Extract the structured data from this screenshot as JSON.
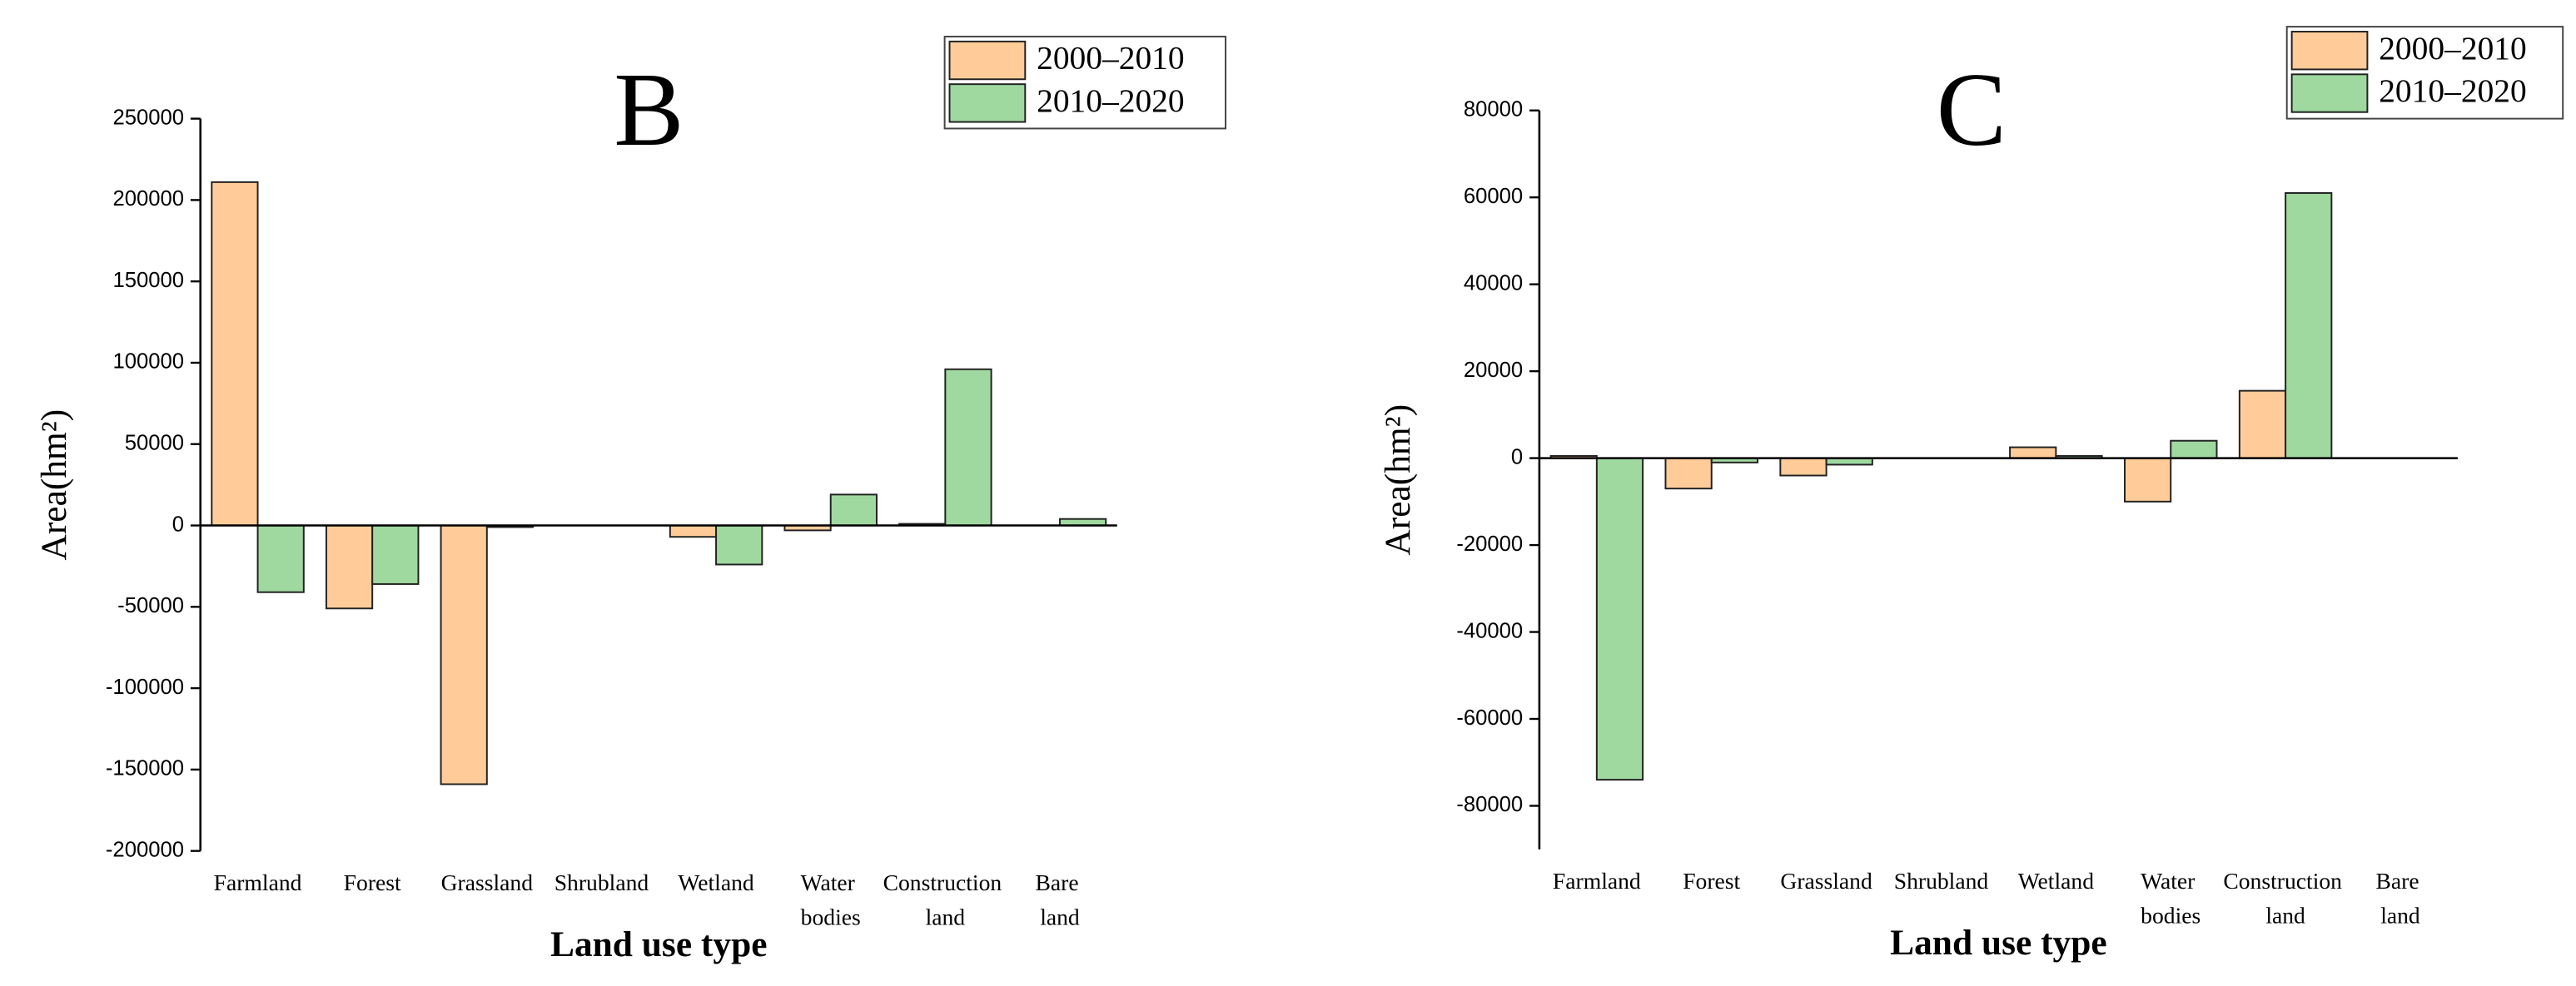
{
  "chart_data": [
    {
      "type": "bar",
      "title": "B",
      "x_label": "Land use type",
      "y_label": "Area(hm²)",
      "categories": [
        "Farmland",
        "Forest",
        "Grassland",
        "Shrubland",
        "Wetland",
        "Water bodies",
        "Construction land",
        "Bare land"
      ],
      "series": [
        {
          "name": "2000–2010",
          "color": "#ffcc99",
          "values": [
            211000,
            -51000,
            -159000,
            0,
            -7000,
            -3000,
            1000,
            0
          ]
        },
        {
          "name": "2010–2020",
          "color": "#9fd99f",
          "values": [
            -41000,
            -36000,
            -1000,
            0,
            -24000,
            19000,
            96000,
            4000
          ]
        }
      ],
      "ylim": [
        -200000,
        250000
      ],
      "yticks": [
        -200000,
        -150000,
        -100000,
        -50000,
        0,
        50000,
        100000,
        150000,
        200000,
        250000
      ],
      "legend": "upper right"
    },
    {
      "type": "bar",
      "title": "C",
      "x_label": "Land use type",
      "y_label": "Area(hm²)",
      "categories": [
        "Farmland",
        "Forest",
        "Grassland",
        "Shrubland",
        "Wetland",
        "Water bodies",
        "Construction land",
        "Bare land"
      ],
      "series": [
        {
          "name": "2000–2010",
          "color": "#ffcc99",
          "values": [
            500,
            -7000,
            -4000,
            0,
            2500,
            -10000,
            15500,
            0
          ]
        },
        {
          "name": "2010–2020",
          "color": "#9fd99f",
          "values": [
            -74000,
            -1000,
            -1500,
            0,
            500,
            4000,
            61000,
            0
          ]
        }
      ],
      "ylim": [
        -90000,
        80000
      ],
      "yticks": [
        -80000,
        -60000,
        -40000,
        -20000,
        0,
        20000,
        40000,
        60000,
        80000
      ],
      "legend": "upper right"
    }
  ]
}
